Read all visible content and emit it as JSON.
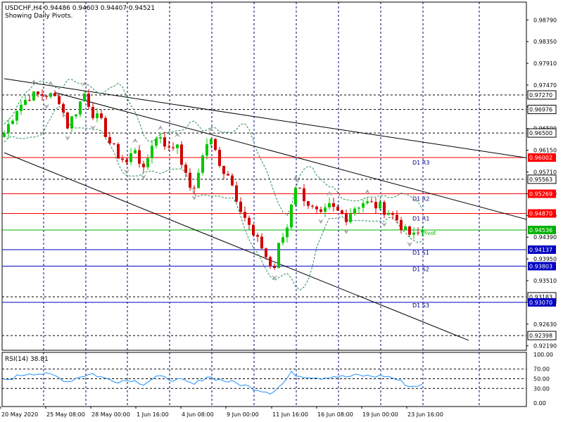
{
  "header": {
    "symbol_line": "USDCHF,H4  0.94486 0.94603 0.94407 0.94521",
    "subtitle": "Showing Daily Pivots."
  },
  "colors": {
    "background": "#ffffff",
    "frame": "#000000",
    "grid": "#000080",
    "bull": "#00c800",
    "bear": "#d00000",
    "resistance": "#ff0000",
    "support": "#0000c0",
    "pivot": "#00b000",
    "envelope": "#2e8b57",
    "rsi": "#1e90ff",
    "fractal": "#a0a0a0"
  },
  "chart_data": [
    {
      "type": "candlestick",
      "title": "USDCHF,H4",
      "ohlc_readout": {
        "open": 0.94486,
        "high": 0.94603,
        "low": 0.94407,
        "close": 0.94521
      },
      "y_ticks": [
        "0.98790",
        "0.98350",
        "0.97910",
        "0.97470",
        "0.97030",
        "0.96590",
        "0.96150",
        "0.95710",
        "0.95270",
        "0.94830",
        "0.94390",
        "0.93950",
        "0.93510",
        "0.93070",
        "0.92630",
        "0.92190"
      ],
      "ylim": [
        0.921,
        0.9915
      ],
      "x_tick_labels": [
        "20 May 2020",
        "25 May 08:00",
        "28 May 00:00",
        "1 Jun 16:00",
        "4 Jun 08:00",
        "9 Jun 00:00",
        "11 Jun 16:00",
        "16 Jun 08:00",
        "19 Jun 00:00",
        "23 Jun 16:00"
      ],
      "price_levels": [
        {
          "value": 0.9727,
          "label": "0.97270",
          "style": "dashed"
        },
        {
          "value": 0.96976,
          "label": "0.96976",
          "style": "dashed"
        },
        {
          "value": 0.965,
          "label": "0.96500",
          "style": "dashed"
        },
        {
          "value": 0.95563,
          "label": "0.95563",
          "style": "dashed"
        },
        {
          "value": 0.93183,
          "label": "0.93183",
          "style": "dashed"
        },
        {
          "value": 0.92398,
          "label": "0.92398",
          "style": "dashed"
        }
      ],
      "pivots": [
        {
          "name": "D1 R3",
          "value": 0.96002,
          "label": "0.96002",
          "kind": "resistance"
        },
        {
          "name": "D1 R2",
          "value": 0.95269,
          "label": "0.95269",
          "kind": "resistance"
        },
        {
          "name": "D1 R1",
          "value": 0.9487,
          "label": "0.94870",
          "kind": "resistance"
        },
        {
          "name": "Pivot",
          "value": 0.94536,
          "label": "0.94536",
          "kind": "pivot"
        },
        {
          "name": "D1 S1",
          "value": 0.94137,
          "label": "0.94137",
          "kind": "support"
        },
        {
          "name": "D1 S2",
          "value": 0.93803,
          "label": "0.93803",
          "kind": "support"
        },
        {
          "name": "D1 S3",
          "value": 0.9307,
          "label": "0.93070",
          "kind": "support"
        }
      ],
      "trendlines": [
        {
          "from": [
            0,
            0.976
          ],
          "to": [
            125,
            0.9598
          ]
        },
        {
          "from": [
            12,
            0.9732
          ],
          "to": [
            125,
            0.9472
          ]
        },
        {
          "from": [
            0,
            0.961
          ],
          "to": [
            110,
            0.923
          ]
        }
      ],
      "close_path": [
        [
          0,
          0.965
        ],
        [
          3,
          0.97
        ],
        [
          6,
          0.9725
        ],
        [
          10,
          0.9728
        ],
        [
          13,
          0.9718
        ],
        [
          15,
          0.9665
        ],
        [
          17,
          0.9695
        ],
        [
          19,
          0.973
        ],
        [
          21,
          0.969
        ],
        [
          23,
          0.967
        ],
        [
          25,
          0.963
        ],
        [
          27,
          0.9605
        ],
        [
          29,
          0.959
        ],
        [
          31,
          0.962
        ],
        [
          33,
          0.957
        ],
        [
          35,
          0.963
        ],
        [
          37,
          0.9645
        ],
        [
          39,
          0.9615
        ],
        [
          41,
          0.963
        ],
        [
          43,
          0.956
        ],
        [
          45,
          0.953
        ],
        [
          47,
          0.961
        ],
        [
          49,
          0.964
        ],
        [
          51,
          0.958
        ],
        [
          53,
          0.957
        ],
        [
          55,
          0.952
        ],
        [
          57,
          0.948
        ],
        [
          59,
          0.944
        ],
        [
          61,
          0.942
        ],
        [
          63,
          0.938
        ],
        [
          64,
          0.9378
        ],
        [
          65,
          0.942
        ],
        [
          67,
          0.946
        ],
        [
          68,
          0.951
        ],
        [
          69,
          0.9545
        ],
        [
          71,
          0.952
        ],
        [
          73,
          0.9495
        ],
        [
          75,
          0.948
        ],
        [
          77,
          0.95
        ],
        [
          79,
          0.949
        ],
        [
          81,
          0.948
        ],
        [
          83,
          0.95
        ],
        [
          85,
          0.951
        ],
        [
          87,
          0.9505
        ],
        [
          89,
          0.95
        ],
        [
          91,
          0.949
        ],
        [
          93,
          0.9475
        ],
        [
          95,
          0.945
        ],
        [
          97,
          0.944
        ],
        [
          99,
          0.9452
        ]
      ]
    },
    {
      "type": "line",
      "title": "RSI(14) 38.81",
      "y_ticks": [
        "100.00",
        "70.00",
        "50.00",
        "30.00",
        "0.00"
      ],
      "ylim": [
        0,
        100
      ],
      "levels": [
        70,
        50,
        30
      ],
      "series": [
        {
          "values": [
            [
              0,
              46
            ],
            [
              3,
              55
            ],
            [
              6,
              62
            ],
            [
              9,
              60
            ],
            [
              12,
              56
            ],
            [
              15,
              44
            ],
            [
              18,
              55
            ],
            [
              21,
              60
            ],
            [
              24,
              50
            ],
            [
              27,
              45
            ],
            [
              30,
              48
            ],
            [
              33,
              40
            ],
            [
              36,
              54
            ],
            [
              39,
              50
            ],
            [
              42,
              46
            ],
            [
              45,
              38
            ],
            [
              48,
              55
            ],
            [
              51,
              48
            ],
            [
              54,
              43
            ],
            [
              57,
              36
            ],
            [
              60,
              28
            ],
            [
              63,
              22
            ],
            [
              64,
              26
            ],
            [
              66,
              40
            ],
            [
              68,
              62
            ],
            [
              70,
              56
            ],
            [
              72,
              55
            ],
            [
              75,
              52
            ],
            [
              78,
              55
            ],
            [
              81,
              54
            ],
            [
              84,
              57
            ],
            [
              87,
              55
            ],
            [
              90,
              56
            ],
            [
              92,
              52
            ],
            [
              94,
              44
            ],
            [
              96,
              34
            ],
            [
              97,
              35
            ],
            [
              99,
              38.81
            ]
          ]
        }
      ]
    }
  ]
}
